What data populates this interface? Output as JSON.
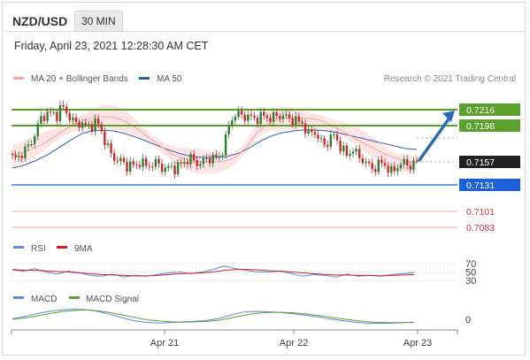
{
  "header": {
    "pair": "NZD/USD",
    "interval": "30 MIN"
  },
  "datetime": "Friday, April 23, 2021 12:28:30 AM CET",
  "legend": {
    "ma20": "MA 20 + Bollinger Bands",
    "ma50": "MA 50"
  },
  "copyright": "Research © 2021 Trading Central",
  "colors": {
    "resistance": "#5aa02c",
    "support": "#1f5fd6",
    "pivot_line": "#f0a0a0",
    "pivot_text": "#d0303a",
    "bollinger": "#fde0e0",
    "ma20": "#f4a6a6",
    "ma50": "#2d5fa8",
    "candle_up": "#2e7d32",
    "candle_down": "#c62828",
    "arrow": "#2d6bb0",
    "current": "#222222"
  },
  "lower_legends": {
    "rsi": "RSI",
    "rsi_ma": "9MA",
    "macd": "MACD",
    "macd_signal": "MACD Signal"
  },
  "chart_data": [
    {
      "type": "candlestick",
      "title": "",
      "x_ticks": [
        "Apr 21",
        "Apr 22",
        "Apr 23"
      ],
      "ylim": [
        0.7075,
        0.7235
      ],
      "price_path": [
        0.7162,
        0.716,
        0.7168,
        0.7172,
        0.7181,
        0.7195,
        0.7208,
        0.7212,
        0.7211,
        0.721,
        0.722,
        0.7213,
        0.7205,
        0.7199,
        0.7202,
        0.7196,
        0.7198,
        0.7203,
        0.7192,
        0.7178,
        0.7165,
        0.716,
        0.7158,
        0.7152,
        0.7155,
        0.715,
        0.716,
        0.7151,
        0.7154,
        0.7156,
        0.7152,
        0.7149,
        0.7151,
        0.715,
        0.7153,
        0.7158,
        0.7161,
        0.7157,
        0.7155,
        0.7158,
        0.7162,
        0.7161,
        0.7163,
        0.7176,
        0.72,
        0.7211,
        0.721,
        0.7209,
        0.7208,
        0.7206,
        0.7207,
        0.7209,
        0.7207,
        0.7207,
        0.721,
        0.7209,
        0.7206,
        0.7205,
        0.7202,
        0.72,
        0.7187,
        0.7193,
        0.7185,
        0.7175,
        0.718,
        0.7188,
        0.718,
        0.717,
        0.7163,
        0.7173,
        0.7163,
        0.716,
        0.7154,
        0.7149,
        0.7153,
        0.7156,
        0.7151,
        0.7144,
        0.7152,
        0.7156,
        0.7154,
        0.7153,
        0.7157
      ],
      "ma20_path": [
        0.7165,
        0.7168,
        0.7172,
        0.7178,
        0.7186,
        0.7194,
        0.72,
        0.7205,
        0.7208,
        0.7208,
        0.7206,
        0.72,
        0.7192,
        0.7183,
        0.7174,
        0.7166,
        0.7161,
        0.7158,
        0.7157,
        0.7157,
        0.7158,
        0.7162,
        0.7174,
        0.719,
        0.72,
        0.7205,
        0.7207,
        0.7207,
        0.7206,
        0.7204,
        0.7198,
        0.7192,
        0.7185,
        0.7178,
        0.7172,
        0.7166,
        0.7161,
        0.7158,
        0.7156
      ],
      "ma50_path": [
        0.715,
        0.7153,
        0.7158,
        0.7164,
        0.7172,
        0.718,
        0.7188,
        0.7192,
        0.7193,
        0.7192,
        0.7189,
        0.7185,
        0.718,
        0.7175,
        0.717,
        0.7166,
        0.7163,
        0.7162,
        0.7162,
        0.7163,
        0.7166,
        0.7172,
        0.718,
        0.7186,
        0.719,
        0.7192,
        0.7193,
        0.7193,
        0.7192,
        0.719,
        0.7187,
        0.7184,
        0.7181,
        0.7178,
        0.7175,
        0.7172,
        0.7171
      ],
      "levels": [
        {
          "value": 0.7216,
          "label": "0.7216",
          "kind": "resistance"
        },
        {
          "value": 0.7198,
          "label": "0.7198",
          "kind": "resistance"
        },
        {
          "value": 0.7157,
          "label": "0.7157",
          "kind": "current"
        },
        {
          "value": 0.7131,
          "label": "0.7131",
          "kind": "support"
        },
        {
          "value": 0.7101,
          "label": "0.7101",
          "kind": "pivot"
        },
        {
          "value": 0.7083,
          "label": "0.7083",
          "kind": "pivot"
        }
      ],
      "forecast_arrow": {
        "from": 0.7157,
        "to": 0.7216
      }
    },
    {
      "type": "line",
      "title": "RSI",
      "y_ticks": [
        70,
        50,
        30
      ],
      "ylim": [
        20,
        80
      ],
      "series": [
        {
          "name": "RSI",
          "values": [
            55,
            52,
            58,
            50,
            45,
            52,
            48,
            42,
            40,
            45,
            38,
            42,
            40,
            44,
            48,
            50,
            46,
            50,
            56,
            64,
            58,
            54,
            50,
            50,
            52,
            46,
            40,
            44,
            42,
            38,
            45,
            40,
            42,
            40,
            44,
            46,
            49
          ]
        },
        {
          "name": "9MA",
          "values": [
            56,
            54,
            54,
            53,
            51,
            50,
            48,
            46,
            44,
            43,
            42,
            41,
            41,
            42,
            44,
            46,
            47,
            48,
            50,
            54,
            56,
            56,
            55,
            53,
            52,
            50,
            48,
            46,
            44,
            43,
            43,
            42,
            42,
            41,
            42,
            43,
            44
          ]
        }
      ]
    },
    {
      "type": "line",
      "title": "MACD",
      "y_ticks": [
        0
      ],
      "series": [
        {
          "name": "MACD",
          "values": [
            0.2,
            1.0,
            2.0,
            2.8,
            3.3,
            3.6,
            3.4,
            2.8,
            1.8,
            0.6,
            -0.5,
            -1.1,
            -1.3,
            -1.2,
            -0.9,
            -0.7,
            -0.4,
            0.3,
            1.6,
            2.6,
            2.8,
            2.7,
            2.4,
            2.0,
            1.5,
            0.9,
            0.2,
            -0.4,
            -0.9,
            -1.3,
            -1.4,
            -1.4,
            -1.2,
            -1.0
          ]
        },
        {
          "name": "MACD Signal",
          "values": [
            0.0,
            0.5,
            1.2,
            2.0,
            2.7,
            3.1,
            3.3,
            3.0,
            2.4,
            1.6,
            0.7,
            -0.1,
            -0.6,
            -0.9,
            -1.0,
            -0.9,
            -0.7,
            -0.3,
            0.5,
            1.4,
            2.1,
            2.4,
            2.5,
            2.3,
            1.9,
            1.4,
            0.8,
            0.2,
            -0.3,
            -0.8,
            -1.1,
            -1.2,
            -1.2,
            -1.1
          ]
        }
      ]
    }
  ]
}
